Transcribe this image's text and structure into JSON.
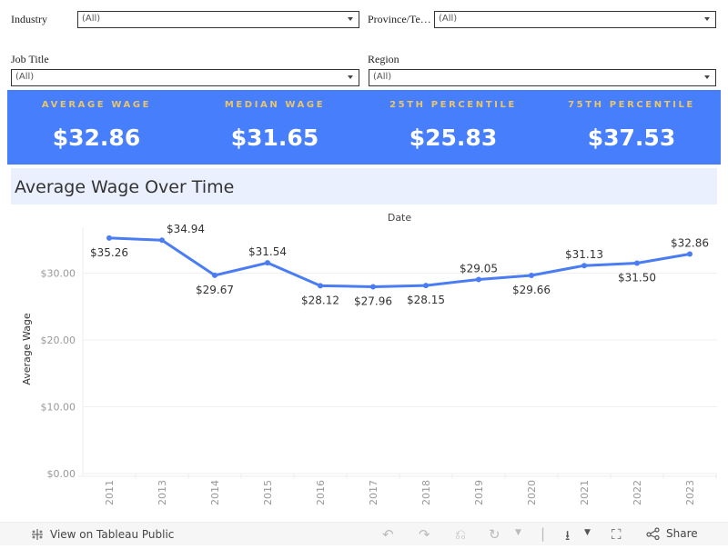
{
  "filters": {
    "industry": {
      "label": "Industry",
      "value": "(All)"
    },
    "province": {
      "label": "Province/Te…",
      "value": "(All)"
    },
    "job_title": {
      "label": "Job Title",
      "value": "(All)"
    },
    "region": {
      "label": "Region",
      "value": "(All)"
    }
  },
  "kpis": [
    {
      "label": "AVERAGE WAGE",
      "value": "$32.86"
    },
    {
      "label": "MEDIAN WAGE",
      "value": "$31.65"
    },
    {
      "label": "25TH PERCENTILE",
      "value": "$25.83"
    },
    {
      "label": "75TH PERCENTILE",
      "value": "$37.53"
    }
  ],
  "colors": {
    "kpi_band": "#477efc",
    "kpi_label": "#e8c66a",
    "line": "#4a7cf4",
    "title_bg": "#eaf0fd"
  },
  "chart_title": "Average Wage Over Time",
  "chart_data": {
    "type": "line",
    "title": "Average Wage Over Time",
    "xlabel": "Date",
    "ylabel": "Average Wage",
    "categories": [
      "2011",
      "2013",
      "2014",
      "2015",
      "2016",
      "2017",
      "2018",
      "2019",
      "2020",
      "2021",
      "2022",
      "2023"
    ],
    "values": [
      35.26,
      34.94,
      29.67,
      31.54,
      28.12,
      27.96,
      28.15,
      29.05,
      29.66,
      31.13,
      31.5,
      32.86
    ],
    "data_labels": [
      "$35.26",
      "$34.94",
      "$29.67",
      "$31.54",
      "$28.12",
      "$27.96",
      "$28.15",
      "$29.05",
      "$29.66",
      "$31.13",
      "$31.50",
      "$32.86"
    ],
    "yticks": [
      "$0.00",
      "$10.00",
      "$20.00",
      "$30.00"
    ],
    "ylim": [
      0,
      36
    ],
    "grid": true
  },
  "footer": {
    "view_link": "View on Tableau Public",
    "share_label": "Share"
  }
}
